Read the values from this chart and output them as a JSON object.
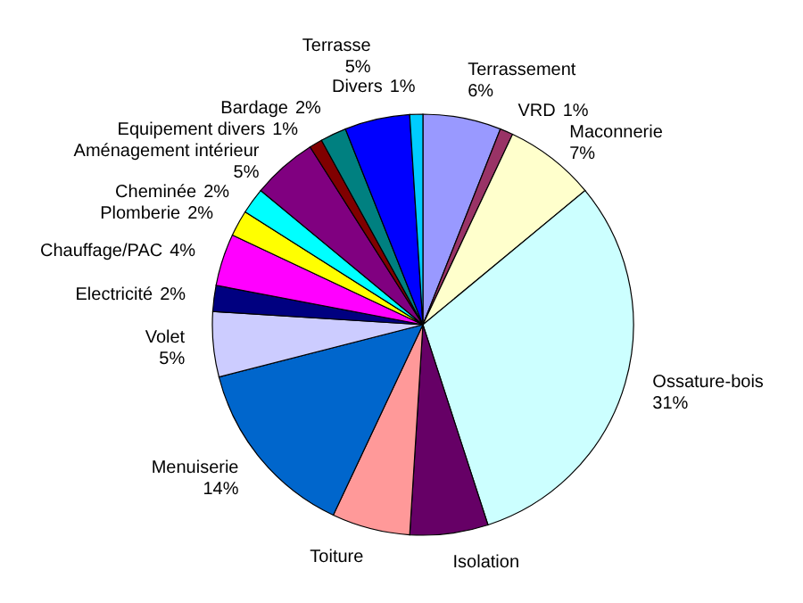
{
  "chart_data": {
    "type": "pie",
    "categories": [
      "Terrassement",
      "VRD",
      "Maconnerie",
      "Ossature-bois",
      "Isolation",
      "Toiture",
      "Menuiserie",
      "Volet",
      "Electricité",
      "Chauffage/PAC",
      "Plomberie",
      "Cheminée",
      "Aménagement intérieur",
      "Equipement divers",
      "Bardage",
      "Terrasse",
      "Divers"
    ],
    "values": [
      6,
      1,
      7,
      31,
      6,
      6,
      14,
      5,
      2,
      4,
      2,
      2,
      5,
      1,
      2,
      5,
      1
    ],
    "value_labels": [
      "6%",
      "1%",
      "7%",
      "31%",
      null,
      null,
      "14%",
      "5%",
      "2%",
      "4%",
      "2%",
      "2%",
      "5%",
      "1%",
      "2%",
      "5%",
      "1%"
    ],
    "colors": [
      "#9999ff",
      "#993366",
      "#ffffcc",
      "#ccffff",
      "#660066",
      "#ff9999",
      "#0066cc",
      "#ccccff",
      "#000080",
      "#ff00ff",
      "#ffff00",
      "#00ffff",
      "#800080",
      "#800000",
      "#008080",
      "#0000ff",
      "#00ccff"
    ]
  }
}
